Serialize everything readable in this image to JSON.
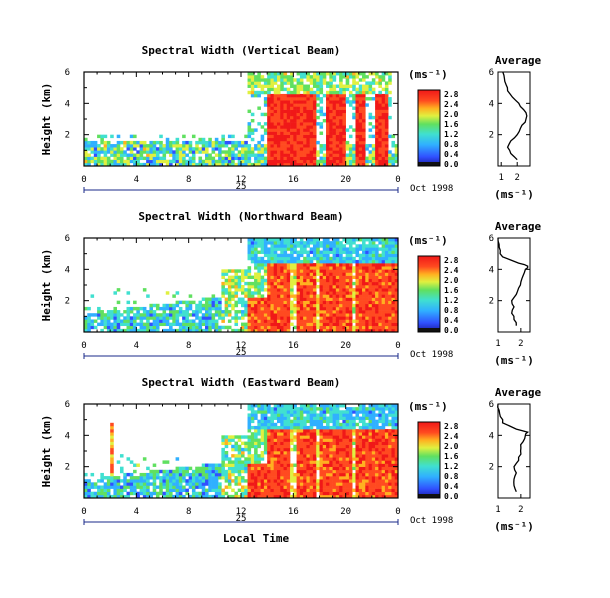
{
  "chart_data": [
    {
      "type": "heatmap",
      "title": "Spectral Width (Vertical Beam)",
      "ylabel": "Height (km)",
      "yticks": [
        "2",
        "4",
        "6"
      ],
      "xticks": [
        "0",
        "4",
        "8",
        "12",
        "16",
        "20",
        "0"
      ],
      "xlim": [
        0,
        24
      ],
      "ylim": [
        0,
        6
      ],
      "day_label": "25",
      "date_label": "Oct 1998",
      "unit_label": "(ms⁻¹)",
      "colorbar_ticks": [
        "0.0",
        "0.4",
        "0.8",
        "1.2",
        "1.6",
        "2.0",
        "2.4",
        "2.8"
      ],
      "average": {
        "title": "Average",
        "xlabel": "(ms⁻¹)",
        "xticks": [
          "1",
          "2"
        ],
        "yticks": [
          "2",
          "4",
          "6"
        ],
        "xlim": [
          0.8,
          2.8
        ],
        "height_km": [
          0.4,
          0.8,
          1.2,
          1.6,
          2.0,
          2.4,
          2.8,
          3.2,
          3.6,
          4.0,
          4.4,
          4.8,
          5.2,
          5.6,
          6.0
        ],
        "width_ms": [
          2.0,
          1.6,
          1.4,
          1.6,
          2.0,
          2.2,
          2.5,
          2.6,
          2.4,
          2.1,
          1.7,
          1.4,
          1.3,
          1.2,
          1.1
        ]
      }
    },
    {
      "type": "heatmap",
      "title": "Spectral Width (Northward Beam)",
      "ylabel": "Height (km)",
      "yticks": [
        "2",
        "4",
        "6"
      ],
      "xticks": [
        "0",
        "4",
        "8",
        "12",
        "16",
        "20",
        "0"
      ],
      "xlim": [
        0,
        24
      ],
      "ylim": [
        0,
        6
      ],
      "day_label": "25",
      "date_label": "Oct 1998",
      "unit_label": "(ms⁻¹)",
      "colorbar_ticks": [
        "0.0",
        "0.4",
        "0.8",
        "1.2",
        "1.6",
        "2.0",
        "2.4",
        "2.8"
      ],
      "average": {
        "title": "Average",
        "xlabel": "(ms⁻¹)",
        "xticks": [
          "1",
          "2"
        ],
        "yticks": [
          "2",
          "4",
          "6"
        ],
        "xlim": [
          1.0,
          2.4
        ],
        "height_km": [
          0.4,
          0.8,
          1.2,
          1.6,
          2.0,
          2.4,
          2.8,
          3.2,
          3.6,
          4.0,
          4.2,
          4.4,
          4.8,
          5.2,
          5.6,
          6.0
        ],
        "width_ms": [
          1.8,
          1.7,
          1.6,
          1.7,
          1.6,
          1.8,
          1.9,
          2.0,
          2.1,
          2.2,
          2.3,
          1.9,
          1.2,
          1.1,
          1.05,
          1.0
        ]
      }
    },
    {
      "type": "heatmap",
      "title": "Spectral Width (Eastward Beam)",
      "ylabel": "Height (km)",
      "xlabel": "Local Time",
      "yticks": [
        "2",
        "4",
        "6"
      ],
      "xticks": [
        "0",
        "4",
        "8",
        "12",
        "16",
        "20",
        "0"
      ],
      "xlim": [
        0,
        24
      ],
      "ylim": [
        0,
        6
      ],
      "day_label": "25",
      "date_label": "Oct 1998",
      "unit_label": "(ms⁻¹)",
      "colorbar_ticks": [
        "0.0",
        "0.4",
        "0.8",
        "1.2",
        "1.6",
        "2.0",
        "2.4",
        "2.8"
      ],
      "average": {
        "title": "Average",
        "xlabel": "(ms⁻¹)",
        "xticks": [
          "1",
          "2"
        ],
        "yticks": [
          "2",
          "4",
          "6"
        ],
        "xlim": [
          1.0,
          2.4
        ],
        "height_km": [
          0.4,
          0.8,
          1.2,
          1.6,
          2.0,
          2.4,
          2.8,
          3.2,
          3.6,
          4.0,
          4.2,
          4.4,
          4.8,
          5.2,
          5.6,
          6.0
        ],
        "width_ms": [
          1.8,
          1.7,
          1.7,
          1.8,
          1.7,
          1.9,
          2.0,
          2.0,
          2.1,
          2.2,
          2.3,
          1.8,
          1.2,
          1.1,
          1.05,
          1.0
        ]
      }
    }
  ]
}
